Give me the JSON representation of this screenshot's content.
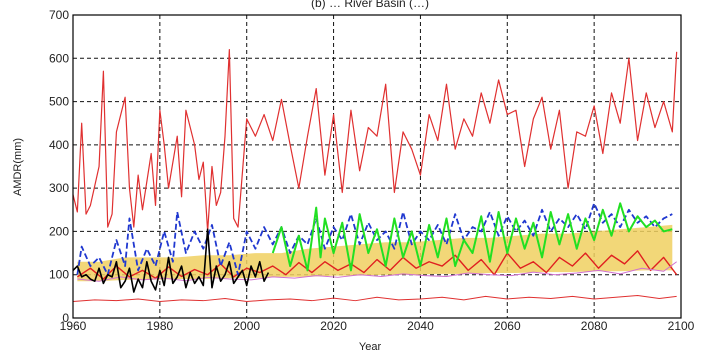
{
  "chart_data": {
    "type": "line",
    "title": "(b) … River Basin (…)",
    "xlabel": "Year",
    "ylabel": "AMDR(mm)",
    "xlim": [
      1960,
      2100
    ],
    "ylim": [
      0,
      700
    ],
    "xticks": [
      1960,
      1980,
      2000,
      2020,
      2040,
      2060,
      2080,
      2100
    ],
    "yticks": [
      0,
      100,
      200,
      300,
      400,
      500,
      600,
      700
    ],
    "grid": true,
    "legend": "none",
    "series": [
      {
        "style": "band",
        "color": "#f0d060",
        "x": [
          1961,
          1966,
          1972,
          1978,
          1984,
          1990,
          1996,
          2002,
          2008,
          2014,
          2020,
          2026,
          2032,
          2038,
          2044,
          2050,
          2056,
          2062,
          2068,
          2074,
          2080,
          2086,
          2092,
          2098
        ],
        "upper": [
          130,
          130,
          140,
          140,
          140,
          145,
          145,
          150,
          150,
          160,
          165,
          170,
          175,
          175,
          180,
          185,
          185,
          190,
          195,
          195,
          200,
          205,
          210,
          215
        ],
        "lower": [
          85,
          85,
          88,
          88,
          90,
          90,
          92,
          92,
          95,
          95,
          98,
          98,
          100,
          100,
          102,
          102,
          104,
          104,
          106,
          106,
          108,
          108,
          110,
          110
        ]
      },
      {
        "style": "line",
        "color": "#e03030",
        "width": 1.2,
        "x": [
          1960,
          1961,
          1962,
          1963,
          1964,
          1966,
          1967,
          1968,
          1969,
          1970,
          1972,
          1973,
          1974,
          1975,
          1976,
          1978,
          1979,
          1980,
          1981,
          1982,
          1984,
          1985,
          1986,
          1988,
          1989,
          1990,
          1991,
          1992,
          1993,
          1994,
          1995,
          1996,
          1997,
          1998,
          2000,
          2002,
          2004,
          2006,
          2008,
          2010,
          2012,
          2014,
          2016,
          2018,
          2020,
          2022,
          2024,
          2026,
          2028,
          2030,
          2032,
          2034,
          2036,
          2038,
          2040,
          2042,
          2044,
          2046,
          2048,
          2050,
          2052,
          2054,
          2056,
          2058,
          2060,
          2062,
          2064,
          2066,
          2068,
          2070,
          2072,
          2074,
          2076,
          2078,
          2080,
          2082,
          2084,
          2086,
          2088,
          2090,
          2092,
          2094,
          2096,
          2098,
          2099
        ],
        "values": [
          285,
          245,
          450,
          240,
          260,
          350,
          570,
          210,
          240,
          430,
          510,
          300,
          210,
          330,
          250,
          380,
          260,
          480,
          400,
          300,
          420,
          280,
          480,
          400,
          320,
          360,
          200,
          350,
          260,
          290,
          420,
          620,
          230,
          210,
          460,
          420,
          470,
          410,
          505,
          400,
          300,
          420,
          530,
          330,
          470,
          290,
          480,
          340,
          440,
          420,
          540,
          290,
          430,
          390,
          330,
          470,
          410,
          540,
          390,
          460,
          420,
          520,
          450,
          550,
          470,
          480,
          350,
          460,
          510,
          390,
          480,
          300,
          430,
          420,
          490,
          380,
          520,
          450,
          600,
          410,
          520,
          440,
          500,
          430,
          615
        ]
      },
      {
        "style": "line",
        "color": "#e03030",
        "width": 1,
        "x": [
          1960,
          1965,
          1970,
          1975,
          1980,
          1985,
          1990,
          1995,
          2000,
          2005,
          2010,
          2015,
          2020,
          2025,
          2030,
          2035,
          2040,
          2045,
          2050,
          2055,
          2060,
          2065,
          2070,
          2075,
          2080,
          2085,
          2090,
          2095,
          2099
        ],
        "values": [
          38,
          42,
          40,
          44,
          38,
          42,
          40,
          45,
          38,
          42,
          44,
          40,
          46,
          40,
          48,
          42,
          44,
          48,
          42,
          50,
          44,
          48,
          45,
          50,
          44,
          48,
          52,
          45,
          50
        ]
      },
      {
        "style": "line",
        "color": "#e02020",
        "width": 1.4,
        "x": [
          1961,
          1964,
          1967,
          1970,
          1973,
          1976,
          1979,
          1982,
          1985,
          1988,
          1991,
          1994,
          1997,
          2000,
          2003,
          2006,
          2009,
          2012,
          2015,
          2018,
          2021,
          2024,
          2027,
          2030,
          2033,
          2036,
          2039,
          2042,
          2045,
          2048,
          2051,
          2054,
          2057,
          2060,
          2063,
          2066,
          2069,
          2072,
          2075,
          2078,
          2081,
          2084,
          2087,
          2090,
          2093,
          2096,
          2099
        ],
        "values": [
          95,
          115,
          90,
          120,
          95,
          110,
          92,
          118,
          96,
          112,
          100,
          125,
          95,
          115,
          105,
          120,
          100,
          128,
          105,
          130,
          110,
          125,
          105,
          135,
          110,
          140,
          115,
          130,
          120,
          145,
          110,
          135,
          100,
          150,
          115,
          130,
          105,
          140,
          120,
          150,
          115,
          145,
          125,
          155,
          110,
          140,
          100
        ]
      },
      {
        "style": "line",
        "color": "#d070d0",
        "width": 1,
        "x": [
          1961,
          1966,
          1971,
          1976,
          1981,
          1986,
          1991,
          1996,
          2001,
          2006,
          2011,
          2016,
          2021,
          2026,
          2031,
          2036,
          2041,
          2046,
          2051,
          2056,
          2061,
          2066,
          2071,
          2076,
          2081,
          2086,
          2091,
          2096,
          2099
        ],
        "values": [
          90,
          85,
          95,
          88,
          92,
          86,
          94,
          90,
          88,
          95,
          92,
          98,
          94,
          100,
          96,
          102,
          98,
          96,
          104,
          100,
          98,
          106,
          100,
          104,
          110,
          102,
          115,
          108,
          130
        ]
      },
      {
        "style": "line",
        "color": "#2038d0",
        "width": 1.8,
        "dash": "6 3",
        "x": [
          1961,
          1962,
          1964,
          1966,
          1968,
          1970,
          1972,
          1973,
          1975,
          1977,
          1979,
          1981,
          1983,
          1984,
          1986,
          1988,
          1990,
          1992,
          1994,
          1996,
          1998,
          2000,
          2002,
          2004,
          2006,
          2008,
          2010,
          2012,
          2014,
          2016,
          2018,
          2020,
          2022,
          2024,
          2026,
          2028,
          2030,
          2032,
          2034,
          2036,
          2038,
          2040,
          2042,
          2044,
          2046,
          2048,
          2050,
          2052,
          2054,
          2056,
          2058,
          2060,
          2062,
          2064,
          2066,
          2068,
          2070,
          2072,
          2074,
          2076,
          2078,
          2080,
          2082,
          2084,
          2086,
          2088,
          2090,
          2092,
          2094,
          2096,
          2098
        ],
        "values": [
          100,
          165,
          120,
          140,
          100,
          180,
          120,
          230,
          110,
          160,
          120,
          200,
          130,
          245,
          150,
          200,
          160,
          215,
          120,
          175,
          100,
          200,
          160,
          210,
          170,
          210,
          150,
          190,
          170,
          230,
          160,
          210,
          180,
          240,
          170,
          220,
          180,
          200,
          160,
          245,
          170,
          200,
          180,
          215,
          170,
          240,
          180,
          210,
          200,
          245,
          190,
          235,
          200,
          225,
          190,
          250,
          200,
          230,
          210,
          240,
          205,
          265,
          220,
          240,
          210,
          250,
          220,
          235,
          210,
          230,
          240
        ]
      },
      {
        "style": "line",
        "color": "#22e022",
        "width": 2,
        "x": [
          2006,
          2008,
          2010,
          2012,
          2014,
          2016,
          2017,
          2018,
          2020,
          2022,
          2024,
          2026,
          2028,
          2030,
          2032,
          2034,
          2036,
          2038,
          2040,
          2042,
          2044,
          2046,
          2048,
          2050,
          2052,
          2054,
          2056,
          2058,
          2060,
          2062,
          2064,
          2066,
          2068,
          2070,
          2072,
          2074,
          2076,
          2078,
          2080,
          2082,
          2084,
          2086,
          2088,
          2090,
          2092,
          2094,
          2096,
          2098
        ],
        "values": [
          150,
          210,
          120,
          190,
          110,
          255,
          140,
          230,
          150,
          220,
          110,
          240,
          150,
          205,
          120,
          230,
          140,
          200,
          120,
          215,
          140,
          230,
          120,
          180,
          150,
          235,
          130,
          245,
          150,
          230,
          160,
          220,
          140,
          245,
          170,
          240,
          160,
          230,
          180,
          250,
          190,
          265,
          200,
          235,
          210,
          225,
          200,
          205
        ]
      },
      {
        "style": "line",
        "color": "#000000",
        "width": 1.6,
        "x": [
          1960,
          1961,
          1962,
          1963,
          1964,
          1965,
          1966,
          1967,
          1968,
          1969,
          1970,
          1971,
          1972,
          1973,
          1974,
          1975,
          1976,
          1977,
          1978,
          1979,
          1980,
          1981,
          1982,
          1983,
          1984,
          1985,
          1986,
          1987,
          1988,
          1989,
          1990,
          1991,
          1992,
          1993,
          1994,
          1995,
          1996,
          1997,
          1998,
          1999,
          2000,
          2001,
          2002,
          2003,
          2004,
          2005
        ],
        "values": [
          110,
          120,
          95,
          100,
          90,
          85,
          115,
          80,
          100,
          95,
          130,
          70,
          85,
          115,
          60,
          90,
          70,
          130,
          85,
          65,
          110,
          75,
          140,
          80,
          95,
          120,
          70,
          105,
          80,
          95,
          75,
          205,
          70,
          120,
          85,
          100,
          130,
          80,
          95,
          110,
          75,
          120,
          95,
          130,
          85,
          105
        ]
      }
    ]
  }
}
